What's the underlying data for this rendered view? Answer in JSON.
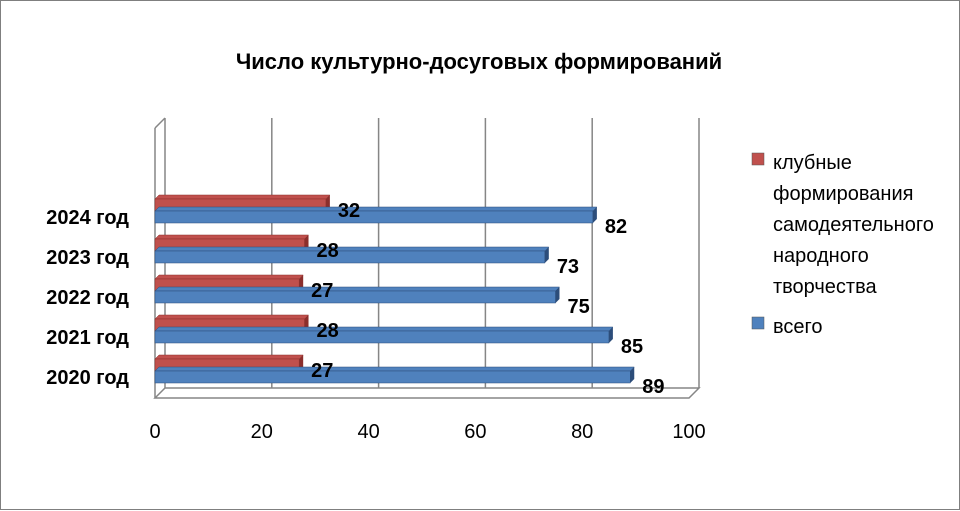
{
  "chart_data": {
    "type": "bar",
    "orientation": "horizontal",
    "title": "Число культурно-досуговых формирований",
    "categories": [
      "2020 год",
      "2021 год",
      "2022 год",
      "2023 год",
      "2024 год"
    ],
    "series": [
      {
        "name": "клубные формирования самодеятельного народного творчества",
        "values": [
          27,
          28,
          27,
          28,
          32
        ],
        "color": "#c0504d"
      },
      {
        "name": "всего",
        "values": [
          89,
          85,
          75,
          73,
          82
        ],
        "color": "#4f81bd"
      }
    ],
    "xlim": [
      0,
      100
    ],
    "xticks": [
      "0",
      "20",
      "40",
      "60",
      "80",
      "100"
    ],
    "grid": "vertical",
    "legend_position": "right",
    "legend_lines": [
      [
        "клубные",
        "формирования",
        "самодеятельного",
        "народного",
        "творчества"
      ],
      [
        "всего"
      ]
    ]
  }
}
